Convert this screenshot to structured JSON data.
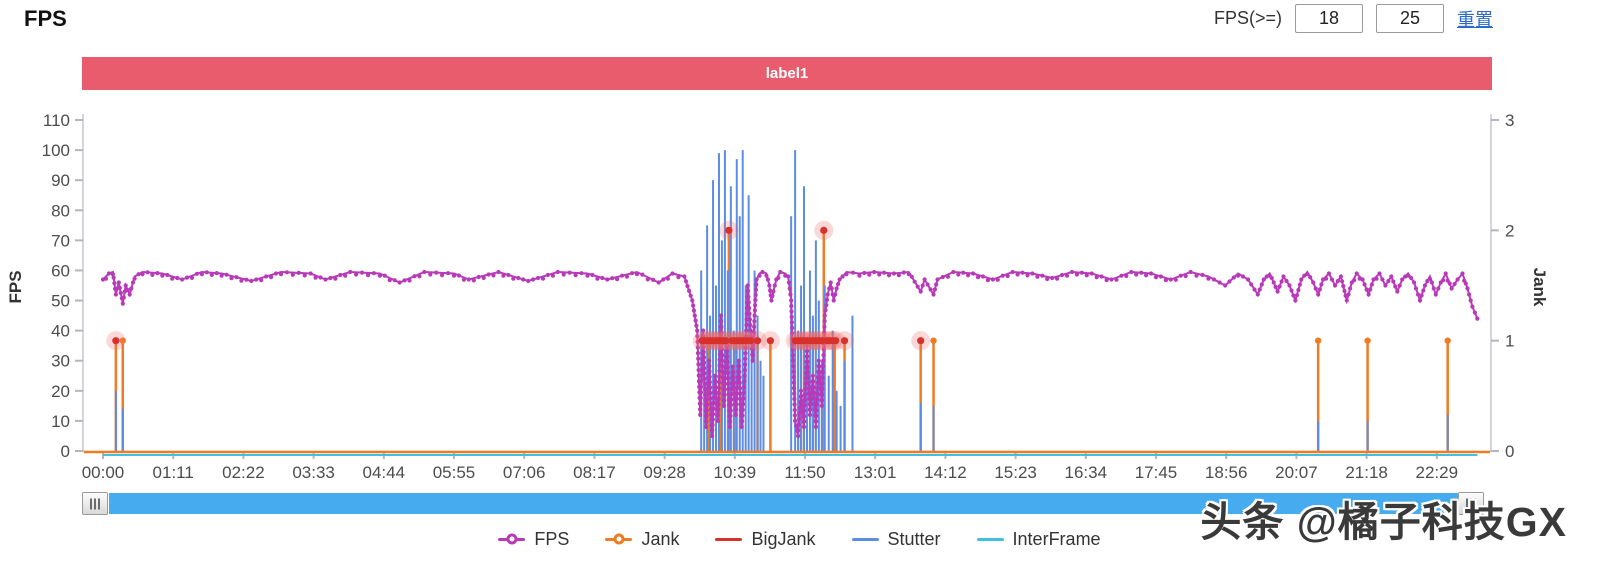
{
  "header": {
    "title": "FPS"
  },
  "controls": {
    "label": "FPS(>=)",
    "min_value": "18",
    "max_value": "25",
    "reset_label": "重置"
  },
  "banner": {
    "label": "label1",
    "color": "#e85c6e"
  },
  "watermark": {
    "text": "头条 @橘子科技GX"
  },
  "scrollbar": {
    "track_color": "#47abef"
  },
  "legend": {
    "items": [
      {
        "label": "FPS",
        "color": "#b83ab8",
        "marker": true
      },
      {
        "label": "Jank",
        "color": "#ef7c23",
        "marker": true
      },
      {
        "label": "BigJank",
        "color": "#d8312b",
        "marker": false
      },
      {
        "label": "Stutter",
        "color": "#5c8de6",
        "marker": false
      },
      {
        "label": "InterFrame",
        "color": "#3fc0e0",
        "marker": false
      }
    ]
  },
  "chart_data": {
    "type": "line",
    "title": "label1",
    "y_left": {
      "label": "FPS",
      "min": 0,
      "max": 110,
      "ticks": [
        0,
        10,
        20,
        30,
        40,
        50,
        60,
        70,
        80,
        90,
        100,
        110
      ]
    },
    "y_right": {
      "label": "Jank",
      "min": 0,
      "max": 3,
      "ticks": [
        0,
        1,
        2,
        3
      ]
    },
    "x": {
      "tick_labels": [
        "00:00",
        "01:11",
        "02:22",
        "03:33",
        "04:44",
        "05:55",
        "07:06",
        "08:17",
        "09:28",
        "10:39",
        "11:50",
        "13:01",
        "14:12",
        "15:23",
        "16:34",
        "17:45",
        "18:56",
        "20:07",
        "21:18",
        "22:29"
      ],
      "tick_interval_seconds": 71,
      "total_seconds": 1390
    },
    "series": {
      "fps": {
        "name": "FPS",
        "color": "#b83ab8",
        "axis": "left",
        "points": [
          [
            0,
            57
          ],
          [
            6,
            59
          ],
          [
            10,
            59.5
          ],
          [
            13,
            52
          ],
          [
            16,
            56
          ],
          [
            20,
            49
          ],
          [
            23,
            55
          ],
          [
            27,
            52
          ],
          [
            32,
            58
          ],
          [
            40,
            59.5
          ],
          [
            60,
            59
          ],
          [
            80,
            57
          ],
          [
            100,
            59.5
          ],
          [
            120,
            59
          ],
          [
            150,
            56.5
          ],
          [
            180,
            59.5
          ],
          [
            210,
            59
          ],
          [
            225,
            57
          ],
          [
            250,
            59.5
          ],
          [
            280,
            59
          ],
          [
            300,
            56
          ],
          [
            325,
            59.5
          ],
          [
            355,
            59
          ],
          [
            370,
            57
          ],
          [
            400,
            59.5
          ],
          [
            430,
            56.5
          ],
          [
            460,
            59.5
          ],
          [
            490,
            59
          ],
          [
            510,
            57
          ],
          [
            540,
            59.5
          ],
          [
            562,
            56
          ],
          [
            576,
            59
          ],
          [
            588,
            58
          ],
          [
            596,
            50
          ],
          [
            601,
            40
          ],
          [
            604,
            12
          ],
          [
            607,
            40
          ],
          [
            610,
            8
          ],
          [
            613,
            30
          ],
          [
            616,
            5
          ],
          [
            619,
            25
          ],
          [
            622,
            10
          ],
          [
            625,
            45
          ],
          [
            628,
            15
          ],
          [
            631,
            35
          ],
          [
            634,
            8
          ],
          [
            637,
            28
          ],
          [
            640,
            12
          ],
          [
            643,
            30
          ],
          [
            646,
            8
          ],
          [
            649,
            25
          ],
          [
            652,
            55
          ],
          [
            655,
            40
          ],
          [
            657,
            30
          ],
          [
            659,
            45
          ],
          [
            661,
            57
          ],
          [
            664,
            59
          ],
          [
            667,
            59.5
          ],
          [
            671,
            59
          ],
          [
            674,
            55
          ],
          [
            676,
            50
          ],
          [
            678,
            53
          ],
          [
            681,
            57
          ],
          [
            685,
            59.5
          ],
          [
            690,
            59
          ],
          [
            693,
            58
          ],
          [
            696,
            50
          ],
          [
            698,
            30
          ],
          [
            700,
            10
          ],
          [
            703,
            5
          ],
          [
            706,
            20
          ],
          [
            709,
            8
          ],
          [
            712,
            35
          ],
          [
            715,
            12
          ],
          [
            718,
            25
          ],
          [
            721,
            8
          ],
          [
            724,
            30
          ],
          [
            727,
            15
          ],
          [
            730,
            45
          ],
          [
            733,
            52
          ],
          [
            736,
            56
          ],
          [
            739,
            50
          ],
          [
            742,
            54
          ],
          [
            745,
            57
          ],
          [
            748,
            58
          ],
          [
            752,
            59.5
          ],
          [
            765,
            59
          ],
          [
            780,
            59.5
          ],
          [
            800,
            59
          ],
          [
            815,
            59.5
          ],
          [
            827,
            53
          ],
          [
            831,
            57
          ],
          [
            840,
            52
          ],
          [
            844,
            57
          ],
          [
            860,
            59.5
          ],
          [
            880,
            59
          ],
          [
            900,
            57
          ],
          [
            920,
            59.5
          ],
          [
            940,
            59
          ],
          [
            960,
            57.5
          ],
          [
            980,
            59.5
          ],
          [
            1000,
            59
          ],
          [
            1020,
            57
          ],
          [
            1040,
            59.5
          ],
          [
            1060,
            59
          ],
          [
            1080,
            57
          ],
          [
            1100,
            59.5
          ],
          [
            1118,
            58
          ],
          [
            1135,
            55
          ],
          [
            1148,
            59
          ],
          [
            1158,
            57
          ],
          [
            1168,
            52
          ],
          [
            1174,
            57
          ],
          [
            1180,
            59
          ],
          [
            1188,
            53
          ],
          [
            1194,
            58
          ],
          [
            1200,
            55
          ],
          [
            1206,
            50
          ],
          [
            1212,
            57
          ],
          [
            1218,
            59.5
          ],
          [
            1224,
            56
          ],
          [
            1229,
            52
          ],
          [
            1234,
            57
          ],
          [
            1240,
            59
          ],
          [
            1246,
            55
          ],
          [
            1252,
            58
          ],
          [
            1258,
            50
          ],
          [
            1263,
            56
          ],
          [
            1268,
            59
          ],
          [
            1274,
            57
          ],
          [
            1280,
            52
          ],
          [
            1285,
            57
          ],
          [
            1291,
            59
          ],
          [
            1297,
            55
          ],
          [
            1303,
            58
          ],
          [
            1309,
            53
          ],
          [
            1314,
            57
          ],
          [
            1320,
            59
          ],
          [
            1326,
            56
          ],
          [
            1332,
            50
          ],
          [
            1337,
            55
          ],
          [
            1342,
            58
          ],
          [
            1348,
            52
          ],
          [
            1353,
            56
          ],
          [
            1358,
            59
          ],
          [
            1364,
            54
          ],
          [
            1370,
            57
          ],
          [
            1375,
            59
          ],
          [
            1380,
            54
          ],
          [
            1385,
            48
          ],
          [
            1390,
            44
          ]
        ]
      },
      "jank": {
        "name": "Jank",
        "color": "#ef7c23",
        "axis": "right",
        "baseline": 0,
        "spikes": [
          [
            13,
            1
          ],
          [
            20,
            1
          ],
          [
            612,
            1
          ],
          [
            624,
            1
          ],
          [
            633,
            2
          ],
          [
            640,
            1
          ],
          [
            662,
            1
          ],
          [
            675,
            1
          ],
          [
            706,
            1
          ],
          [
            718,
            1
          ],
          [
            729,
            2
          ],
          [
            740,
            1
          ],
          [
            750,
            1
          ],
          [
            827,
            1
          ],
          [
            840,
            1
          ],
          [
            1229,
            1
          ],
          [
            1279,
            1
          ],
          [
            1360,
            1
          ]
        ]
      },
      "bigjank": {
        "name": "BigJank",
        "color": "#d8312b",
        "halo_color": "rgba(237,106,106,0.26)",
        "axis": "right",
        "markers": [
          [
            13,
            1
          ],
          [
            606,
            1
          ],
          [
            609,
            1
          ],
          [
            612,
            1
          ],
          [
            615,
            1
          ],
          [
            618,
            1
          ],
          [
            621,
            1
          ],
          [
            624,
            1
          ],
          [
            627,
            1
          ],
          [
            630,
            1
          ],
          [
            633,
            2
          ],
          [
            636,
            1
          ],
          [
            639,
            1
          ],
          [
            642,
            1
          ],
          [
            645,
            1
          ],
          [
            648,
            1
          ],
          [
            651,
            1
          ],
          [
            655,
            1
          ],
          [
            662,
            1
          ],
          [
            675,
            1
          ],
          [
            700,
            1
          ],
          [
            703,
            1
          ],
          [
            706,
            1
          ],
          [
            709,
            1
          ],
          [
            712,
            1
          ],
          [
            715,
            1
          ],
          [
            718,
            1
          ],
          [
            721,
            1
          ],
          [
            724,
            1
          ],
          [
            727,
            1
          ],
          [
            729,
            2
          ],
          [
            732,
            1
          ],
          [
            735,
            1
          ],
          [
            738,
            1
          ],
          [
            741,
            1
          ],
          [
            750,
            1
          ],
          [
            827,
            1
          ]
        ]
      },
      "stutter": {
        "name": "Stutter",
        "color": "#5c8de6",
        "axis": "left",
        "spikes": [
          [
            13,
            20
          ],
          [
            20,
            14
          ],
          [
            605,
            60
          ],
          [
            608,
            30
          ],
          [
            611,
            75
          ],
          [
            614,
            45
          ],
          [
            617,
            90
          ],
          [
            620,
            55
          ],
          [
            623,
            99
          ],
          [
            626,
            70
          ],
          [
            629,
            100
          ],
          [
            632,
            60
          ],
          [
            635,
            88
          ],
          [
            638,
            40
          ],
          [
            641,
            97
          ],
          [
            644,
            78
          ],
          [
            647,
            100
          ],
          [
            650,
            55
          ],
          [
            653,
            85
          ],
          [
            656,
            35
          ],
          [
            659,
            60
          ],
          [
            662,
            45
          ],
          [
            665,
            30
          ],
          [
            668,
            25
          ],
          [
            696,
            78
          ],
          [
            700,
            100
          ],
          [
            703,
            40
          ],
          [
            706,
            55
          ],
          [
            709,
            88
          ],
          [
            712,
            35
          ],
          [
            715,
            60
          ],
          [
            718,
            45
          ],
          [
            721,
            70
          ],
          [
            724,
            50
          ],
          [
            727,
            30
          ],
          [
            730,
            55
          ],
          [
            734,
            25
          ],
          [
            738,
            40
          ],
          [
            742,
            20
          ],
          [
            746,
            15
          ],
          [
            750,
            30
          ],
          [
            758,
            45
          ],
          [
            827,
            16
          ],
          [
            840,
            15
          ],
          [
            1229,
            10
          ],
          [
            1279,
            10
          ],
          [
            1360,
            12
          ]
        ]
      },
      "interframe": {
        "name": "InterFrame",
        "color": "#3fc0e0",
        "axis": "left",
        "points": [
          [
            0,
            0
          ],
          [
            1390,
            0
          ]
        ]
      }
    }
  }
}
